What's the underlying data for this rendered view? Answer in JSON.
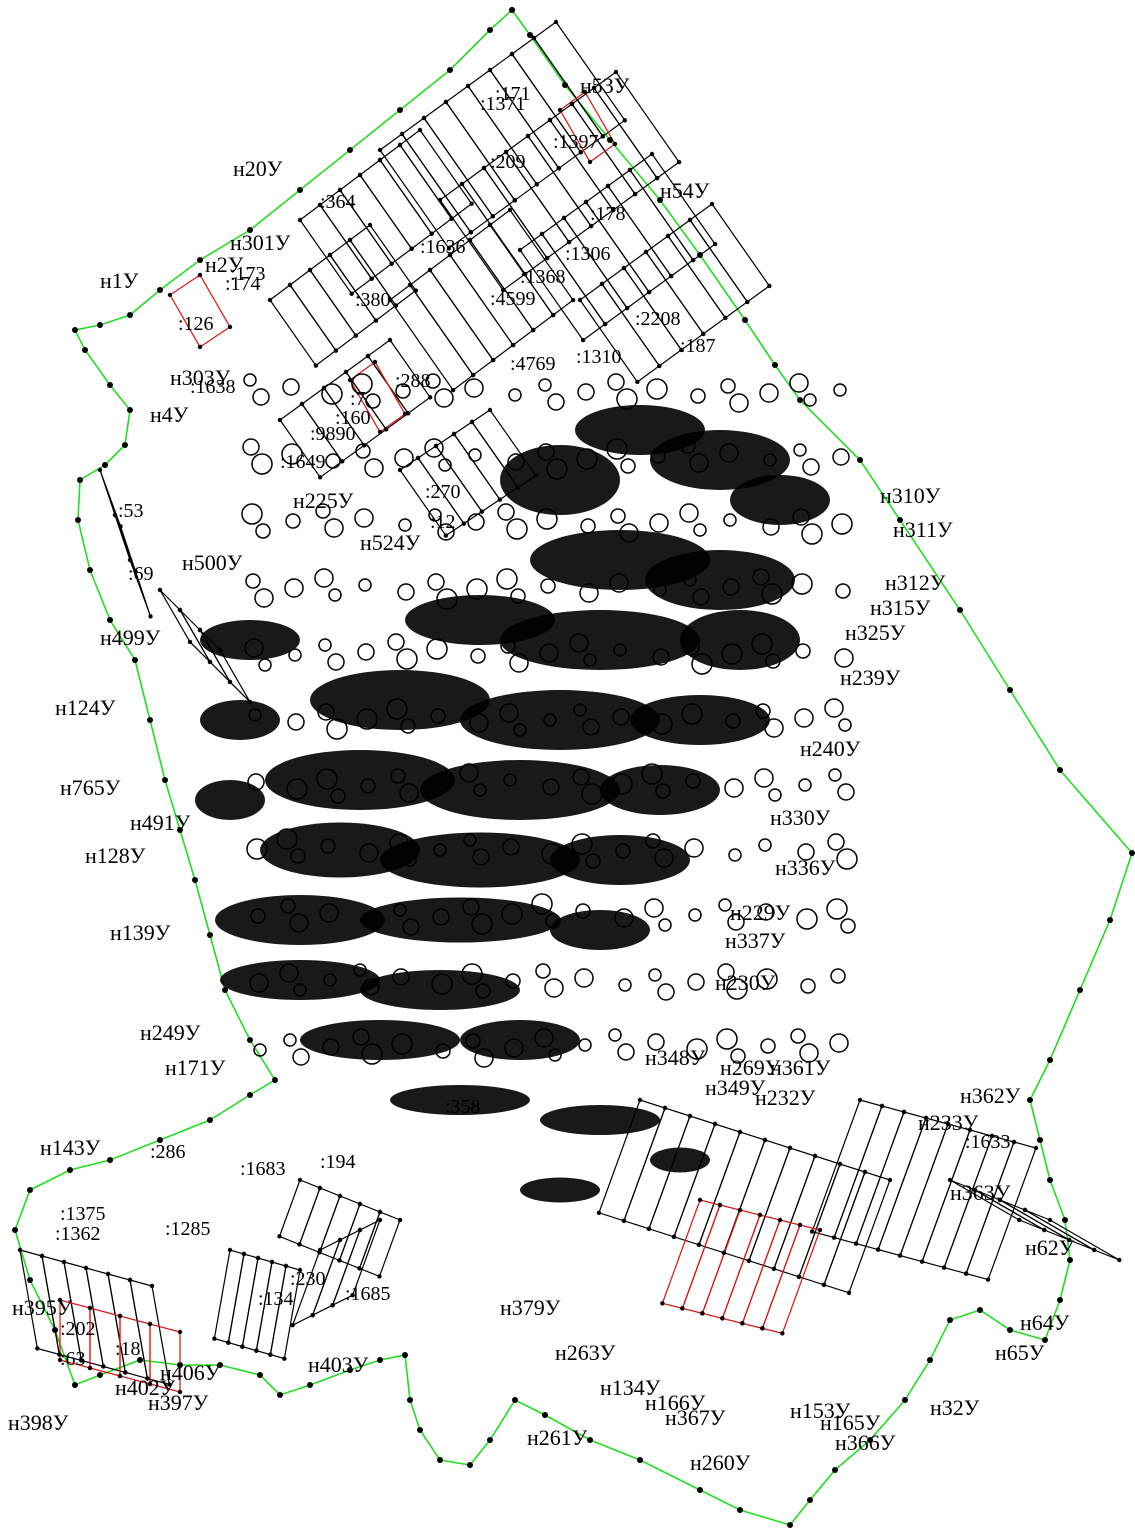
{
  "map": {
    "boundary_color": "#22dd22",
    "parcel_color": "#000000",
    "highlight_color": "#dd1111",
    "labels": [
      {
        "t": "н53У"
      },
      {
        "t": "н54У"
      },
      {
        "t": "н20У"
      },
      {
        "t": "н1У"
      },
      {
        "t": "н4У"
      },
      {
        "t": "н2У"
      },
      {
        "t": "н225У"
      },
      {
        "t": "н310У"
      },
      {
        "t": "н311У"
      },
      {
        "t": "н312У"
      },
      {
        "t": "н315У"
      },
      {
        "t": "н325У"
      },
      {
        "t": "н239У"
      },
      {
        "t": "н240У"
      },
      {
        "t": "н330У"
      },
      {
        "t": "н336У"
      },
      {
        "t": "н229У"
      },
      {
        "t": "н337У"
      },
      {
        "t": "н230У"
      },
      {
        "t": "н524У"
      },
      {
        "t": "н500У"
      },
      {
        "t": "н499У"
      },
      {
        "t": "н124У"
      },
      {
        "t": "н128У"
      },
      {
        "t": "н139У"
      },
      {
        "t": "н249У"
      },
      {
        "t": "н171У"
      },
      {
        "t": "н143У"
      },
      {
        "t": "н395У"
      },
      {
        "t": "н398У"
      },
      {
        "t": "н402У"
      },
      {
        "t": "н397У"
      },
      {
        "t": "н406У"
      },
      {
        "t": "н403У"
      },
      {
        "t": "н379У"
      },
      {
        "t": "н263У"
      },
      {
        "t": "н134У"
      },
      {
        "t": "н166У"
      },
      {
        "t": "н367У"
      },
      {
        "t": "н261У"
      },
      {
        "t": "н260У"
      },
      {
        "t": "н165У"
      },
      {
        "t": "н366У"
      },
      {
        "t": "н32У"
      },
      {
        "t": "н65У"
      },
      {
        "t": "н64У"
      },
      {
        "t": "н62У"
      },
      {
        "t": "н363У"
      },
      {
        "t": "н362У"
      },
      {
        "t": "н233У"
      },
      {
        "t": "н361У"
      },
      {
        "t": "н269У"
      },
      {
        "t": "н232У"
      },
      {
        "t": "н349У"
      },
      {
        "t": "н348У"
      },
      {
        "t": "н491У"
      },
      {
        "t": "н765У"
      },
      {
        "t": "н153У"
      },
      {
        "t": "н303У"
      },
      {
        "t": "н301У"
      },
      {
        "t": ":171"
      },
      {
        "t": ":1371"
      },
      {
        "t": ":1397"
      },
      {
        "t": ":178"
      },
      {
        "t": ":1306"
      },
      {
        "t": ":1368"
      },
      {
        "t": ":4599"
      },
      {
        "t": ":1636"
      },
      {
        "t": ":209"
      },
      {
        "t": ":2208"
      },
      {
        "t": ":187"
      },
      {
        "t": ":1310"
      },
      {
        "t": ":4769"
      },
      {
        "t": ":288"
      },
      {
        "t": ":160"
      },
      {
        "t": ":7"
      },
      {
        "t": ":9890"
      },
      {
        "t": ":1649"
      },
      {
        "t": ":1638"
      },
      {
        "t": ":126"
      },
      {
        "t": ":174"
      },
      {
        "t": ":173"
      },
      {
        "t": ":364"
      },
      {
        "t": ":380"
      },
      {
        "t": ":270"
      },
      {
        "t": ":12"
      },
      {
        "t": ":53"
      },
      {
        "t": ":69"
      },
      {
        "t": ":1633"
      },
      {
        "t": ":1375"
      },
      {
        "t": ":1362"
      },
      {
        "t": ":1685"
      },
      {
        "t": ":194"
      },
      {
        "t": ":358"
      },
      {
        "t": ":230"
      },
      {
        "t": ":202"
      },
      {
        "t": ":18"
      },
      {
        "t": ":1285"
      },
      {
        "t": ":134"
      },
      {
        "t": ":286"
      },
      {
        "t": ":1683"
      },
      {
        "t": ":63"
      }
    ]
  }
}
